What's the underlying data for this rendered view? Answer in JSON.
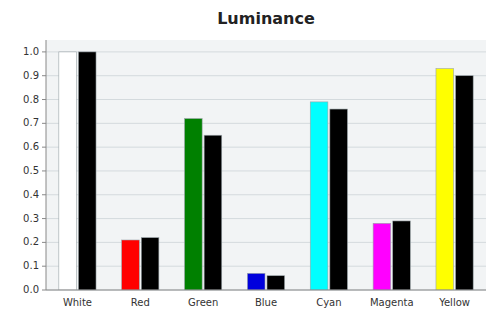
{
  "chart_data": {
    "type": "bar",
    "title": "Luminance",
    "categories": [
      "White",
      "Red",
      "Green",
      "Blue",
      "Cyan",
      "Magenta",
      "Yellow"
    ],
    "series": [
      {
        "colors": [
          "#ffffff",
          "#ff0000",
          "#008000",
          "#0000dd",
          "#00ffff",
          "#ff00ff",
          "#ffff00"
        ],
        "values": [
          1.0,
          0.21,
          0.72,
          0.07,
          0.79,
          0.28,
          0.93
        ]
      },
      {
        "color": "#000000",
        "values": [
          1.0,
          0.22,
          0.65,
          0.06,
          0.76,
          0.29,
          0.9
        ]
      }
    ],
    "ylim": [
      0.0,
      1.05
    ],
    "yticks": [
      {
        "value": 0.0,
        "label": "0.0"
      },
      0.1,
      0.2,
      0.3,
      0.4,
      0.5,
      0.6,
      0.7,
      0.8,
      0.9,
      {
        "value": 1.0,
        "label": "1.0"
      }
    ],
    "grid": true
  }
}
